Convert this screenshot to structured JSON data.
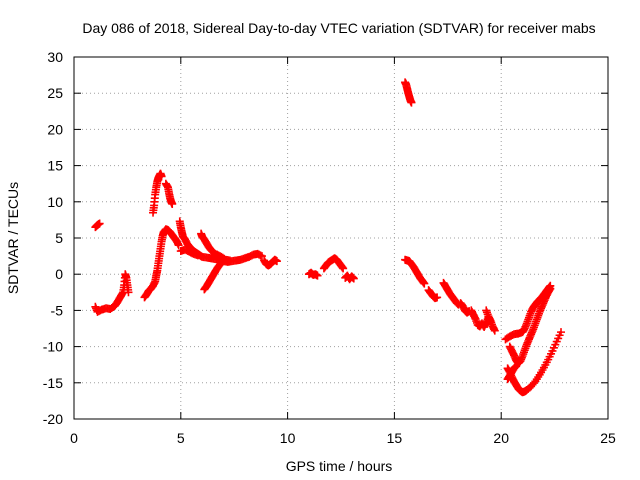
{
  "chart_data": {
    "type": "scatter",
    "title": "Day 086 of 2018, Sidereal Day-to-day VTEC variation (SDTVAR) for receiver mabs",
    "xlabel": "GPS time / hours",
    "ylabel": "SDTVAR / TECUs",
    "xlim": [
      0,
      25
    ],
    "ylim": [
      -20,
      30
    ],
    "xticks": [
      0,
      5,
      10,
      15,
      20,
      25
    ],
    "yticks": [
      -20,
      -15,
      -10,
      -5,
      0,
      5,
      10,
      15,
      20,
      25,
      30
    ],
    "xtick_labels": [
      "0",
      "5",
      "10",
      "15",
      "20",
      "25"
    ],
    "ytick_labels": [
      "-20",
      "-15",
      "-10",
      "-5",
      "0",
      "5",
      "10",
      "15",
      "20",
      "25",
      "30"
    ],
    "grid": true,
    "marker": "+",
    "series": [
      {
        "name": "mabs",
        "color": "#ff0000",
        "segments": [
          [
            [
              1.0,
              6.5
            ],
            [
              1.1,
              6.8
            ],
            [
              1.2,
              7.0
            ]
          ],
          [
            [
              1.0,
              -4.5
            ],
            [
              1.1,
              -5.2
            ],
            [
              1.3,
              -4.9
            ],
            [
              1.5,
              -4.7
            ],
            [
              1.7,
              -4.8
            ],
            [
              1.9,
              -4.4
            ],
            [
              2.0,
              -4.0
            ],
            [
              2.1,
              -3.5
            ],
            [
              2.2,
              -3.0
            ],
            [
              2.3,
              -2.5
            ],
            [
              2.35,
              -1.5
            ],
            [
              2.4,
              0.0
            ],
            [
              2.45,
              -0.5
            ],
            [
              2.5,
              -1.5
            ],
            [
              2.55,
              -2.5
            ]
          ],
          [
            [
              3.3,
              -3.2
            ],
            [
              3.4,
              -2.8
            ],
            [
              3.5,
              -2.3
            ],
            [
              3.6,
              -2.0
            ],
            [
              3.7,
              -1.6
            ],
            [
              3.8,
              -1.0
            ],
            [
              3.85,
              -0.2
            ],
            [
              3.9,
              0.5
            ],
            [
              3.95,
              1.5
            ],
            [
              4.0,
              2.5
            ],
            [
              4.05,
              3.5
            ],
            [
              4.1,
              4.5
            ],
            [
              4.15,
              5.3
            ],
            [
              4.2,
              5.8
            ],
            [
              4.3,
              6.2
            ],
            [
              4.4,
              6.1
            ],
            [
              4.5,
              5.8
            ],
            [
              4.6,
              5.4
            ],
            [
              4.7,
              5.0
            ],
            [
              4.8,
              4.6
            ],
            [
              4.9,
              4.0
            ]
          ],
          [
            [
              3.7,
              8.5
            ],
            [
              3.75,
              9.5
            ],
            [
              3.8,
              11.0
            ],
            [
              3.85,
              12.0
            ],
            [
              3.9,
              12.8
            ],
            [
              3.95,
              13.3
            ],
            [
              4.0,
              13.6
            ],
            [
              4.05,
              13.9
            ],
            [
              4.1,
              13.5
            ]
          ],
          [
            [
              4.3,
              12.5
            ],
            [
              4.4,
              12.0
            ],
            [
              4.45,
              11.2
            ],
            [
              4.5,
              10.5
            ],
            [
              4.55,
              10.0
            ],
            [
              4.6,
              9.7
            ]
          ],
          [
            [
              4.95,
              7.3
            ],
            [
              5.0,
              6.5
            ],
            [
              5.05,
              5.8
            ],
            [
              5.1,
              5.2
            ],
            [
              5.2,
              4.8
            ],
            [
              5.3,
              4.2
            ],
            [
              5.4,
              3.8
            ],
            [
              5.5,
              3.5
            ],
            [
              5.6,
              3.2
            ],
            [
              5.7,
              3.0
            ],
            [
              5.8,
              2.8
            ],
            [
              5.9,
              2.6
            ],
            [
              6.0,
              2.4
            ],
            [
              6.2,
              2.3
            ],
            [
              6.4,
              2.2
            ],
            [
              6.6,
              2.1
            ],
            [
              6.8,
              2.0
            ],
            [
              7.0,
              1.8
            ],
            [
              7.2,
              1.7
            ],
            [
              7.4,
              1.8
            ],
            [
              7.6,
              1.9
            ],
            [
              7.8,
              2.0
            ],
            [
              8.0,
              2.2
            ],
            [
              8.2,
              2.4
            ],
            [
              8.4,
              2.7
            ],
            [
              8.6,
              2.8
            ],
            [
              8.8,
              2.5
            ]
          ],
          [
            [
              5.0,
              3.2
            ],
            [
              5.2,
              3.4
            ],
            [
              5.4,
              3.1
            ],
            [
              5.6,
              2.8
            ],
            [
              5.8,
              2.6
            ]
          ],
          [
            [
              5.95,
              5.6
            ],
            [
              6.0,
              5.2
            ],
            [
              6.1,
              4.8
            ],
            [
              6.2,
              4.3
            ],
            [
              6.3,
              3.8
            ],
            [
              6.4,
              3.4
            ],
            [
              6.5,
              3.1
            ],
            [
              6.6,
              2.8
            ],
            [
              6.7,
              2.6
            ],
            [
              6.8,
              2.4
            ]
          ],
          [
            [
              6.1,
              -2.1
            ],
            [
              6.2,
              -1.7
            ],
            [
              6.3,
              -1.2
            ],
            [
              6.4,
              -0.7
            ],
            [
              6.5,
              -0.2
            ],
            [
              6.6,
              0.3
            ],
            [
              6.7,
              0.8
            ],
            [
              6.8,
              1.2
            ],
            [
              6.9,
              1.6
            ],
            [
              7.0,
              2.0
            ]
          ],
          [
            [
              6.5,
              2.5
            ],
            [
              6.7,
              2.7
            ],
            [
              6.9,
              2.4
            ],
            [
              7.1,
              2.0
            ],
            [
              7.3,
              1.9
            ]
          ],
          [
            [
              8.9,
              1.9
            ],
            [
              9.0,
              1.4
            ],
            [
              9.1,
              1.2
            ],
            [
              9.2,
              1.4
            ],
            [
              9.3,
              1.7
            ],
            [
              9.4,
              2.0
            ],
            [
              9.5,
              1.8
            ]
          ],
          [
            [
              11.0,
              0.0
            ],
            [
              11.1,
              0.2
            ],
            [
              11.2,
              -0.1
            ],
            [
              11.3,
              0.0
            ],
            [
              11.4,
              -0.2
            ]
          ],
          [
            [
              11.7,
              0.8
            ],
            [
              11.8,
              1.2
            ],
            [
              11.9,
              1.6
            ],
            [
              12.0,
              1.8
            ],
            [
              12.1,
              2.0
            ],
            [
              12.2,
              2.2
            ],
            [
              12.3,
              2.0
            ],
            [
              12.4,
              1.6
            ],
            [
              12.5,
              1.2
            ],
            [
              12.6,
              0.8
            ]
          ],
          [
            [
              12.7,
              -0.5
            ],
            [
              12.8,
              -0.2
            ],
            [
              12.9,
              -0.7
            ],
            [
              13.0,
              -0.3
            ],
            [
              13.1,
              -0.6
            ]
          ],
          [
            [
              15.5,
              26.5
            ],
            [
              15.55,
              26.2
            ],
            [
              15.6,
              25.6
            ],
            [
              15.65,
              25.0
            ],
            [
              15.7,
              24.5
            ],
            [
              15.75,
              24.0
            ],
            [
              15.8,
              23.7
            ]
          ],
          [
            [
              15.5,
              2.0
            ],
            [
              15.6,
              1.9
            ],
            [
              15.7,
              1.8
            ],
            [
              15.8,
              1.4
            ],
            [
              15.9,
              1.0
            ],
            [
              16.0,
              0.5
            ],
            [
              16.1,
              0.0
            ],
            [
              16.2,
              -0.5
            ],
            [
              16.3,
              -0.9
            ],
            [
              16.4,
              -1.3
            ]
          ],
          [
            [
              16.6,
              -2.2
            ],
            [
              16.7,
              -2.6
            ],
            [
              16.8,
              -3.0
            ],
            [
              16.9,
              -3.3
            ],
            [
              17.0,
              -3.2
            ]
          ],
          [
            [
              17.3,
              -1.2
            ],
            [
              17.4,
              -1.7
            ],
            [
              17.5,
              -2.2
            ],
            [
              17.6,
              -2.7
            ],
            [
              17.7,
              -3.1
            ],
            [
              17.8,
              -3.5
            ],
            [
              17.9,
              -3.9
            ],
            [
              18.0,
              -4.2
            ]
          ],
          [
            [
              18.1,
              -4.0
            ],
            [
              18.2,
              -4.4
            ],
            [
              18.3,
              -5.0
            ],
            [
              18.4,
              -5.3
            ],
            [
              18.5,
              -5.1
            ]
          ],
          [
            [
              18.6,
              -5.0
            ],
            [
              18.7,
              -5.6
            ],
            [
              18.8,
              -6.2
            ],
            [
              18.9,
              -7.0
            ],
            [
              19.0,
              -7.2
            ],
            [
              19.1,
              -6.8
            ],
            [
              19.2,
              -7.3
            ],
            [
              19.3,
              -6.7
            ],
            [
              19.4,
              -6.0
            ],
            [
              19.5,
              -6.5
            ]
          ],
          [
            [
              19.3,
              -5.0
            ],
            [
              19.4,
              -5.8
            ],
            [
              19.5,
              -6.4
            ],
            [
              19.6,
              -7.2
            ],
            [
              19.7,
              -7.8
            ]
          ],
          [
            [
              20.3,
              -13.0
            ],
            [
              20.4,
              -13.5
            ],
            [
              20.5,
              -14.2
            ],
            [
              20.6,
              -14.8
            ],
            [
              20.7,
              -15.3
            ],
            [
              20.8,
              -15.8
            ],
            [
              20.9,
              -16.1
            ],
            [
              21.0,
              -16.3
            ],
            [
              21.1,
              -16.2
            ],
            [
              21.2,
              -16.0
            ],
            [
              21.4,
              -15.5
            ],
            [
              21.6,
              -14.8
            ],
            [
              21.8,
              -13.9
            ],
            [
              22.0,
              -12.9
            ],
            [
              22.2,
              -11.8
            ],
            [
              22.4,
              -10.6
            ],
            [
              22.6,
              -9.3
            ],
            [
              22.8,
              -8.0
            ]
          ],
          [
            [
              20.2,
              -9.0
            ],
            [
              20.4,
              -8.6
            ],
            [
              20.6,
              -8.3
            ],
            [
              20.8,
              -8.2
            ],
            [
              21.0,
              -8.0
            ],
            [
              21.1,
              -7.5
            ],
            [
              21.2,
              -6.8
            ],
            [
              21.3,
              -6.0
            ],
            [
              21.4,
              -5.2
            ],
            [
              21.5,
              -4.6
            ],
            [
              21.6,
              -4.2
            ],
            [
              21.7,
              -3.8
            ],
            [
              21.8,
              -3.5
            ],
            [
              21.9,
              -3.2
            ],
            [
              22.0,
              -2.8
            ],
            [
              22.1,
              -2.4
            ],
            [
              22.2,
              -2.0
            ],
            [
              22.3,
              -1.6
            ]
          ],
          [
            [
              20.4,
              -10.0
            ],
            [
              20.5,
              -10.6
            ],
            [
              20.6,
              -11.2
            ],
            [
              20.7,
              -11.9
            ],
            [
              20.8,
              -12.3
            ],
            [
              20.9,
              -12.0
            ],
            [
              21.0,
              -11.3
            ],
            [
              21.1,
              -10.5
            ],
            [
              21.2,
              -9.7
            ],
            [
              21.3,
              -9.0
            ],
            [
              21.4,
              -8.3
            ],
            [
              21.5,
              -7.6
            ],
            [
              21.6,
              -6.8
            ],
            [
              21.7,
              -6.0
            ],
            [
              21.8,
              -5.2
            ],
            [
              21.9,
              -4.5
            ],
            [
              22.0,
              -3.8
            ],
            [
              22.1,
              -3.1
            ],
            [
              22.2,
              -2.5
            ],
            [
              22.3,
              -2.0
            ]
          ],
          [
            [
              20.3,
              -14.5
            ],
            [
              20.4,
              -14.0
            ],
            [
              20.5,
              -13.5
            ],
            [
              20.6,
              -13.0
            ],
            [
              20.7,
              -12.7
            ]
          ]
        ]
      }
    ]
  }
}
